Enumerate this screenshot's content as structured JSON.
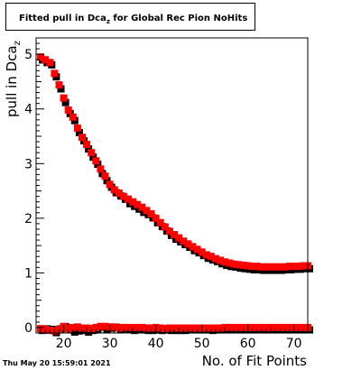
{
  "title": {
    "main": "Fitted pull in Dca",
    "sub": "z",
    "rest": " for Global Rec Pion NoHits"
  },
  "xlabel": "No. of Fit Points",
  "ylabel": {
    "main": "pull in Dca",
    "sub": "z"
  },
  "timestamp": "Thu May 20 15:59:01 2021",
  "colors": {
    "series_front": "#ff0000",
    "series_back": "#000000",
    "frame": "#000000"
  },
  "chart_data": {
    "type": "scatter",
    "xlim": [
      14,
      73
    ],
    "ylim": [
      -0.1,
      5.3
    ],
    "xticks": [
      20,
      30,
      40,
      50,
      60,
      70
    ],
    "yticks": [
      0,
      1,
      2,
      3,
      4,
      5
    ],
    "grid": false,
    "series": [
      {
        "name": "",
        "role": "shadow",
        "x": [
          15,
          16,
          17,
          18,
          19,
          20,
          21,
          22,
          23,
          24,
          25,
          26,
          27,
          28,
          29,
          30,
          31,
          32,
          33,
          34,
          35,
          36,
          37,
          38,
          39,
          40,
          41,
          42,
          43,
          44,
          45,
          46,
          47,
          48,
          49,
          50,
          51,
          52,
          53,
          54,
          55,
          56,
          57,
          58,
          59,
          60,
          61,
          62,
          63,
          64,
          65,
          66,
          67,
          68,
          69,
          70,
          71,
          72,
          73
        ],
        "y": [
          4.93,
          4.88,
          4.84,
          4.62,
          4.4,
          4.15,
          3.95,
          3.82,
          3.6,
          3.45,
          3.3,
          3.15,
          3.02,
          2.85,
          2.72,
          2.6,
          2.5,
          2.44,
          2.38,
          2.3,
          2.25,
          2.2,
          2.14,
          2.1,
          2.04,
          1.95,
          1.88,
          1.8,
          1.72,
          1.65,
          1.6,
          1.55,
          1.5,
          1.44,
          1.4,
          1.35,
          1.3,
          1.27,
          1.24,
          1.2,
          1.17,
          1.15,
          1.14,
          1.12,
          1.11,
          1.1,
          1.09,
          1.09,
          1.08,
          1.08,
          1.08,
          1.08,
          1.08,
          1.09,
          1.09,
          1.1,
          1.1,
          1.11,
          1.11
        ]
      },
      {
        "name": "",
        "role": "shadow",
        "x": [
          15,
          16,
          17,
          18,
          19,
          20,
          21,
          22,
          23,
          24,
          25,
          26,
          27,
          28,
          29,
          30,
          31,
          32,
          33,
          34,
          35,
          36,
          37,
          38,
          39,
          40,
          41,
          42,
          43,
          44,
          45,
          46,
          47,
          48,
          49,
          50,
          51,
          52,
          53,
          54,
          55,
          56,
          57,
          58,
          59,
          60,
          61,
          62,
          63,
          64,
          65,
          66,
          67,
          68,
          69,
          70,
          71,
          72,
          73
        ],
        "y": [
          -0.02,
          0.01,
          0.0,
          -0.06,
          0.01,
          0.05,
          0.01,
          -0.05,
          -0.03,
          -0.02,
          -0.05,
          -0.02,
          0.0,
          0.04,
          0.0,
          0.02,
          0.04,
          0.0,
          0.01,
          0.0,
          -0.02,
          0.0,
          -0.01,
          -0.02,
          -0.02,
          0.0,
          -0.02,
          -0.01,
          -0.02,
          -0.02,
          -0.02,
          -0.02,
          -0.01,
          -0.01,
          -0.01,
          -0.01,
          -0.01,
          -0.02,
          -0.01,
          -0.01,
          -0.01,
          -0.01,
          -0.01,
          -0.01,
          -0.01,
          -0.01,
          -0.01,
          -0.01,
          -0.01,
          -0.01,
          -0.01,
          -0.01,
          -0.01,
          -0.01,
          -0.01,
          -0.01,
          -0.01,
          -0.01,
          -0.01
        ]
      },
      {
        "name": "",
        "role": "front",
        "x": [
          15,
          16,
          17,
          18,
          19,
          20,
          21,
          22,
          23,
          24,
          25,
          26,
          27,
          28,
          29,
          30,
          31,
          32,
          33,
          34,
          35,
          36,
          37,
          38,
          39,
          40,
          41,
          42,
          43,
          44,
          45,
          46,
          47,
          48,
          49,
          50,
          51,
          52,
          53,
          54,
          55,
          56,
          57,
          58,
          59,
          60,
          61,
          62,
          63,
          64,
          65,
          66,
          67,
          68,
          69,
          70,
          71,
          72,
          73
        ],
        "y": [
          4.95,
          4.9,
          4.85,
          4.65,
          4.44,
          4.2,
          3.98,
          3.85,
          3.65,
          3.48,
          3.35,
          3.2,
          3.05,
          2.9,
          2.77,
          2.62,
          2.52,
          2.46,
          2.4,
          2.35,
          2.3,
          2.25,
          2.2,
          2.14,
          2.08,
          2.0,
          1.92,
          1.84,
          1.76,
          1.7,
          1.64,
          1.58,
          1.53,
          1.48,
          1.43,
          1.38,
          1.33,
          1.3,
          1.26,
          1.23,
          1.2,
          1.18,
          1.16,
          1.15,
          1.14,
          1.13,
          1.12,
          1.12,
          1.11,
          1.11,
          1.11,
          1.11,
          1.11,
          1.11,
          1.12,
          1.12,
          1.12,
          1.13,
          1.13
        ]
      },
      {
        "name": "",
        "role": "front",
        "x": [
          15,
          16,
          17,
          18,
          19,
          20,
          21,
          22,
          23,
          24,
          25,
          26,
          27,
          28,
          29,
          30,
          31,
          32,
          33,
          34,
          35,
          36,
          37,
          38,
          39,
          40,
          41,
          42,
          43,
          44,
          45,
          46,
          47,
          48,
          49,
          50,
          51,
          52,
          53,
          54,
          55,
          56,
          57,
          58,
          59,
          60,
          61,
          62,
          63,
          64,
          65,
          66,
          67,
          68,
          69,
          70,
          71,
          72,
          73
        ],
        "y": [
          -0.02,
          -0.03,
          -0.05,
          -0.06,
          -0.03,
          0.02,
          -0.02,
          0.0,
          0.01,
          -0.01,
          -0.01,
          -0.02,
          0.0,
          0.02,
          0.02,
          0.01,
          0.01,
          -0.01,
          0.0,
          0.0,
          0.0,
          0.0,
          0.0,
          -0.01,
          -0.01,
          0.0,
          -0.01,
          -0.02,
          -0.01,
          -0.01,
          -0.01,
          -0.01,
          -0.01,
          -0.01,
          -0.01,
          -0.01,
          -0.01,
          -0.01,
          -0.01,
          -0.01,
          0.0,
          0.0,
          0.0,
          0.0,
          0.0,
          0.0,
          0.0,
          0.0,
          0.0,
          0.0,
          0.0,
          0.0,
          0.0,
          0.0,
          0.0,
          0.0,
          0.0,
          0.0,
          0.0
        ]
      }
    ]
  }
}
